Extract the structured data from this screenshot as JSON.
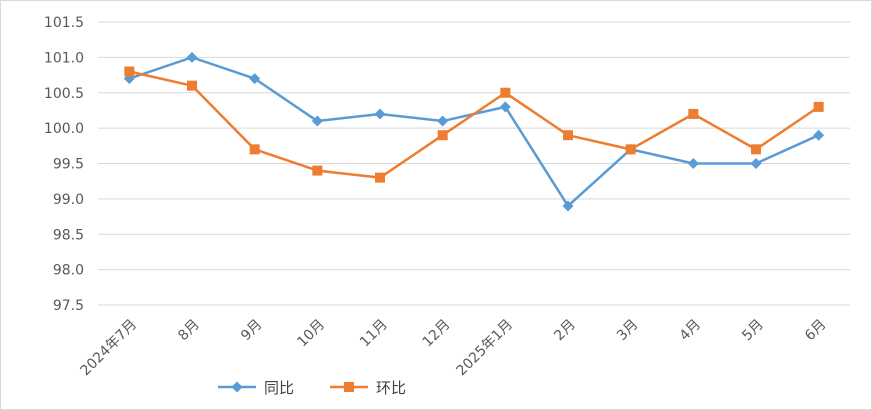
{
  "chart_data": {
    "type": "line",
    "title": "",
    "xlabel": "",
    "ylabel": "",
    "categories": [
      "2024年7月",
      "8月",
      "9月",
      "10月",
      "11月",
      "12月",
      "2025年1月",
      "2月",
      "3月",
      "4月",
      "5月",
      "6月"
    ],
    "ylim": [
      97.5,
      101.5
    ],
    "ytick_step": 0.5,
    "ytick_labels": [
      "97.5",
      "98.0",
      "98.5",
      "99.0",
      "99.5",
      "100.0",
      "100.5",
      "101.0",
      "101.5"
    ],
    "grid": true,
    "legend": "bottom",
    "series": [
      {
        "name": "同比",
        "color": "#5B9BD5",
        "marker": "diamond",
        "values": [
          100.7,
          101.0,
          100.7,
          100.1,
          100.2,
          100.1,
          100.3,
          98.9,
          99.7,
          99.5,
          99.5,
          99.9
        ]
      },
      {
        "name": "环比",
        "color": "#ED7D31",
        "marker": "square",
        "values": [
          100.8,
          100.6,
          99.7,
          99.4,
          99.3,
          99.9,
          100.5,
          99.9,
          99.7,
          100.2,
          99.7,
          100.3
        ]
      }
    ]
  }
}
